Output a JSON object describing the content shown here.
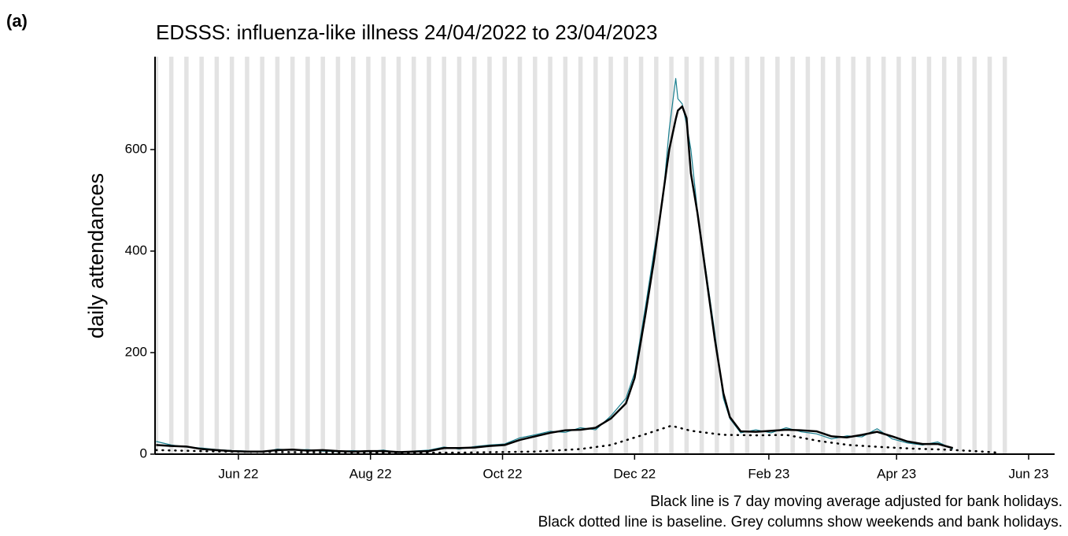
{
  "chart_data": {
    "type": "line",
    "panel_label": "(a)",
    "title": "EDSSS: influenza-like illness 24/04/2022 to 23/04/2023",
    "y_label": "daily attendances",
    "notes": [
      "Black line is 7 day moving average adjusted for bank holidays.",
      "Black dotted line is baseline. Grey columns show weekends and bank holidays."
    ],
    "x": [
      0,
      7,
      14,
      21,
      28,
      35,
      42,
      49,
      56,
      63,
      70,
      77,
      84,
      91,
      98,
      105,
      112,
      119,
      126,
      133,
      140,
      147,
      154,
      161,
      168,
      175,
      182,
      189,
      196,
      203,
      210,
      217,
      221,
      226,
      230,
      234,
      237,
      240,
      241,
      243,
      245,
      247,
      250,
      254,
      258,
      262,
      265,
      270,
      277,
      284,
      291,
      298,
      305,
      312,
      319,
      326,
      333,
      340,
      347,
      354,
      361,
      368
    ],
    "series": [
      {
        "color": "#1a7f8f",
        "width": 1.2,
        "values": [
          25,
          18,
          14,
          12,
          9,
          7,
          6,
          4,
          10,
          8,
          9,
          6,
          5,
          7,
          5,
          8,
          3,
          6,
          8,
          14,
          10,
          15,
          18,
          20,
          32,
          38,
          45,
          43,
          52,
          48,
          75,
          110,
          160,
          290,
          400,
          500,
          640,
          740,
          700,
          690,
          650,
          600,
          480,
          360,
          240,
          110,
          70,
          42,
          48,
          42,
          52,
          44,
          40,
          30,
          36,
          34,
          50,
          30,
          22,
          18,
          24,
          10
        ]
      },
      {
        "color": "#000000",
        "width": 2.5,
        "values": [
          18,
          16,
          15,
          10,
          8,
          6,
          5,
          5,
          8,
          9,
          7,
          8,
          6,
          5,
          6,
          6,
          4,
          5,
          6,
          12,
          12,
          13,
          16,
          18,
          28,
          35,
          42,
          47,
          48,
          52,
          70,
          100,
          150,
          275,
          383,
          507,
          600,
          660,
          677,
          685,
          662,
          553,
          476,
          352,
          228,
          120,
          73,
          45,
          44,
          46,
          48,
          47,
          45,
          35,
          33,
          38,
          44,
          35,
          25,
          20,
          20,
          12
        ]
      },
      {
        "color": "#000000",
        "width": 2.5,
        "dotted": true,
        "x": [
          0,
          30,
          60,
          100,
          140,
          175,
          196,
          210,
          225,
          238,
          247,
          262,
          277,
          291,
          306,
          320,
          335,
          349,
          364,
          378,
          389
        ],
        "values": [
          8,
          5,
          4,
          3,
          3,
          5,
          10,
          18,
          38,
          56,
          46,
          38,
          37,
          38,
          26,
          18,
          14,
          11,
          9,
          6,
          3
        ]
      }
    ],
    "shaded_days": [
      -1,
      6,
      13,
      20,
      27,
      34,
      41,
      48,
      55,
      62,
      69,
      76,
      83,
      90,
      97,
      104,
      111,
      118,
      125,
      132,
      139,
      146,
      153,
      160,
      167,
      174,
      181,
      188,
      195,
      202,
      209,
      216,
      223,
      230,
      237,
      244,
      251,
      258,
      265,
      272,
      279,
      286,
      293,
      300,
      307,
      314,
      321,
      328,
      335,
      342,
      349,
      356,
      363,
      370,
      377,
      384,
      391
    ],
    "shade_width": 2,
    "shade_color": "#e3e3e3",
    "xlim": [
      -0.5,
      415
    ],
    "xticks": [
      {
        "value": 38,
        "label": "Jun 22"
      },
      {
        "value": 99,
        "label": "Aug 22"
      },
      {
        "value": 160,
        "label": "Oct 22"
      },
      {
        "value": 221,
        "label": "Dec 22"
      },
      {
        "value": 283,
        "label": "Feb 23"
      },
      {
        "value": 342,
        "label": "Apr 23"
      },
      {
        "value": 403,
        "label": "Jun 23"
      }
    ],
    "ylim": [
      0,
      783
    ],
    "yticks": [
      0,
      200,
      400,
      600
    ],
    "grid": false
  }
}
